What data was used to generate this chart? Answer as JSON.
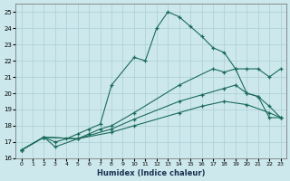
{
  "xlabel": "Humidex (Indice chaleur)",
  "background_color": "#cde8ec",
  "grid_color": "#aacdd4",
  "line_color": "#1a6b5a",
  "xlim": [
    -0.5,
    23.5
  ],
  "ylim": [
    16,
    25.5
  ],
  "xticks": [
    0,
    1,
    2,
    3,
    4,
    5,
    6,
    7,
    8,
    9,
    10,
    11,
    12,
    13,
    14,
    15,
    16,
    17,
    18,
    19,
    20,
    21,
    22,
    23
  ],
  "yticks": [
    16,
    17,
    18,
    19,
    20,
    21,
    22,
    23,
    24,
    25
  ],
  "series": [
    {
      "x": [
        0,
        2,
        3,
        4,
        5,
        6,
        7,
        8,
        10,
        11,
        12,
        13,
        14,
        15,
        16,
        17,
        18,
        19,
        20,
        21,
        22,
        23
      ],
      "y": [
        16.5,
        17.3,
        17.0,
        17.2,
        17.5,
        17.8,
        18.1,
        20.5,
        22.2,
        22.0,
        24.0,
        25.0,
        24.7,
        24.1,
        23.5,
        22.8,
        22.5,
        21.5,
        20.0,
        19.8,
        18.5,
        18.5
      ]
    },
    {
      "x": [
        0,
        2,
        3,
        5,
        6,
        7,
        8,
        10,
        14,
        17,
        18,
        19,
        20,
        21,
        22,
        23
      ],
      "y": [
        16.5,
        17.3,
        16.7,
        17.2,
        17.5,
        17.8,
        18.0,
        18.8,
        20.5,
        21.5,
        21.3,
        21.5,
        21.5,
        21.5,
        21.0,
        21.5
      ]
    },
    {
      "x": [
        0,
        2,
        5,
        8,
        10,
        14,
        16,
        18,
        19,
        20,
        21,
        22,
        23
      ],
      "y": [
        16.5,
        17.3,
        17.2,
        17.8,
        18.4,
        19.5,
        19.9,
        20.3,
        20.5,
        20.0,
        19.8,
        19.2,
        18.5
      ]
    },
    {
      "x": [
        0,
        2,
        5,
        8,
        10,
        14,
        16,
        18,
        20,
        22,
        23
      ],
      "y": [
        16.5,
        17.3,
        17.2,
        17.6,
        18.0,
        18.8,
        19.2,
        19.5,
        19.3,
        18.8,
        18.5
      ]
    }
  ]
}
